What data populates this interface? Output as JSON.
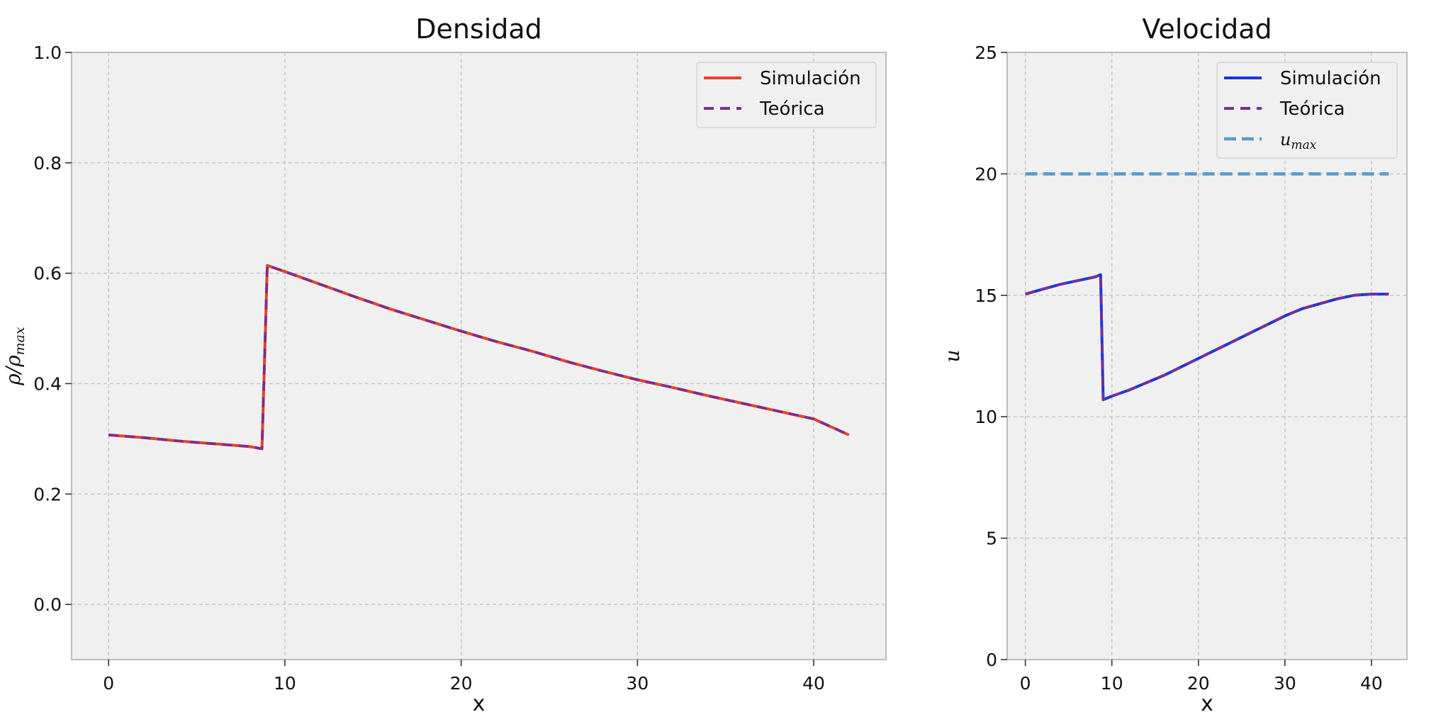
{
  "chart_data": [
    {
      "type": "line",
      "title": "Densidad",
      "xlabel": "x",
      "ylabel": "ρ/ρ",
      "ylabel_sub": "max",
      "xlim": [
        -2.1,
        44.1
      ],
      "ylim": [
        -0.1,
        1.0
      ],
      "xticks": [
        0,
        10,
        20,
        30,
        40
      ],
      "yticks": [
        0.0,
        0.2,
        0.4,
        0.6,
        0.8,
        1.0
      ],
      "ytick_labels": [
        "0.0",
        "0.2",
        "0.4",
        "0.6",
        "0.8",
        "1.0"
      ],
      "grid": true,
      "legend_position": "top-right",
      "legend": [
        "Simulación",
        "Teórica"
      ],
      "series": [
        {
          "name": "Simulación",
          "style": "solid",
          "color": "#e8412a",
          "x": [
            0,
            2,
            4,
            6,
            8,
            8.7,
            9.0,
            10,
            12,
            14,
            16,
            18,
            20,
            22,
            24,
            26,
            28,
            30,
            32,
            34,
            36,
            38,
            40,
            42
          ],
          "y": [
            0.307,
            0.302,
            0.296,
            0.291,
            0.286,
            0.282,
            0.614,
            0.603,
            0.58,
            0.557,
            0.535,
            0.515,
            0.495,
            0.476,
            0.459,
            0.44,
            0.423,
            0.407,
            0.393,
            0.378,
            0.364,
            0.35,
            0.336,
            0.307
          ]
        },
        {
          "name": "Teórica",
          "style": "dashed",
          "color": "#7b2d8e",
          "x": [
            0,
            2,
            4,
            6,
            8,
            8.7,
            9.0,
            10,
            12,
            14,
            16,
            18,
            20,
            22,
            24,
            26,
            28,
            30,
            32,
            34,
            36,
            38,
            40,
            42
          ],
          "y": [
            0.307,
            0.302,
            0.296,
            0.291,
            0.286,
            0.282,
            0.614,
            0.603,
            0.58,
            0.557,
            0.535,
            0.515,
            0.495,
            0.476,
            0.459,
            0.44,
            0.423,
            0.407,
            0.393,
            0.378,
            0.364,
            0.35,
            0.336,
            0.307
          ]
        }
      ]
    },
    {
      "type": "line",
      "title": "Velocidad",
      "xlabel": "x",
      "ylabel": "u",
      "xlim": [
        -2.1,
        44.1
      ],
      "ylim": [
        0,
        25
      ],
      "xticks": [
        0,
        10,
        20,
        30,
        40
      ],
      "yticks": [
        0,
        5,
        10,
        15,
        20,
        25
      ],
      "ytick_labels": [
        "0",
        "5",
        "10",
        "15",
        "20",
        "25"
      ],
      "grid": true,
      "legend_position": "top-right",
      "legend": [
        "Simulación",
        "Teórica",
        "u"
      ],
      "legend_sub": "max",
      "series": [
        {
          "name": "Simulación",
          "style": "solid",
          "color": "#1a35e0",
          "x": [
            0,
            2,
            4,
            6,
            8,
            8.7,
            9.0,
            10,
            12,
            14,
            16,
            18,
            20,
            22,
            24,
            26,
            28,
            30,
            32,
            34,
            36,
            38,
            40,
            42
          ],
          "y": [
            15.05,
            15.25,
            15.45,
            15.6,
            15.75,
            15.85,
            10.7,
            10.85,
            11.1,
            11.4,
            11.7,
            12.05,
            12.4,
            12.75,
            13.1,
            13.45,
            13.8,
            14.15,
            14.45,
            14.65,
            14.85,
            15.0,
            15.05,
            15.05
          ]
        },
        {
          "name": "Teórica",
          "style": "dashed",
          "color": "#7b2d8e",
          "x": [
            0,
            2,
            4,
            6,
            8,
            8.7,
            9.0,
            10,
            12,
            14,
            16,
            18,
            20,
            22,
            24,
            26,
            28,
            30,
            32,
            34,
            36,
            38,
            40,
            42
          ],
          "y": [
            15.05,
            15.25,
            15.45,
            15.6,
            15.75,
            15.85,
            10.7,
            10.85,
            11.1,
            11.4,
            11.7,
            12.05,
            12.4,
            12.75,
            13.1,
            13.45,
            13.8,
            14.15,
            14.45,
            14.65,
            14.85,
            15.0,
            15.05,
            15.05
          ]
        },
        {
          "name": "u",
          "name_sub": "max",
          "style": "dashed-thick",
          "color": "#5b9ac9",
          "x": [
            0,
            42
          ],
          "y": [
            20,
            20
          ]
        }
      ]
    }
  ]
}
